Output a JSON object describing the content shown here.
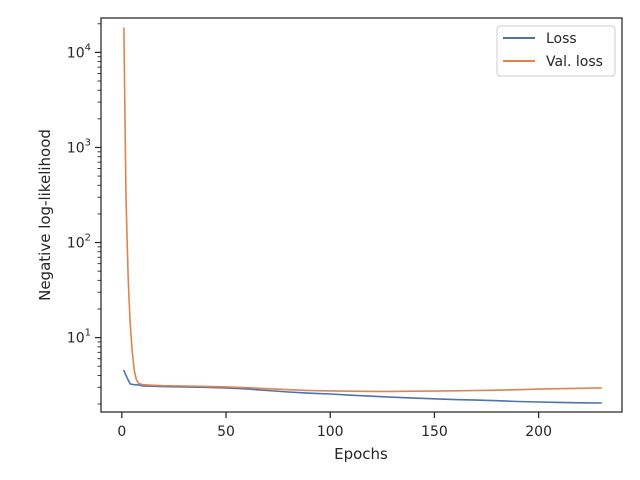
{
  "chart_data": {
    "type": "line",
    "xlabel": "Epochs",
    "ylabel": "Negative log-likelihood",
    "xscale": "linear",
    "yscale": "log",
    "xlim": [
      -10,
      240
    ],
    "ylim": [
      1.65,
      23000
    ],
    "xticks": [
      0,
      50,
      100,
      150,
      200
    ],
    "xtick_labels": [
      "0",
      "50",
      "100",
      "150",
      "200"
    ],
    "yticks": [
      10,
      100,
      1000,
      10000
    ],
    "ytick_labels": [
      {
        "base": "10",
        "exp": "1"
      },
      {
        "base": "10",
        "exp": "2"
      },
      {
        "base": "10",
        "exp": "3"
      },
      {
        "base": "10",
        "exp": "4"
      }
    ],
    "grid": false,
    "legend_position": "top-right",
    "series": [
      {
        "name": "Loss",
        "color": "#4c72b0",
        "x": [
          1,
          2,
          3,
          4,
          6,
          8,
          10,
          15,
          20,
          30,
          40,
          50,
          60,
          70,
          80,
          90,
          100,
          110,
          120,
          130,
          140,
          150,
          160,
          170,
          180,
          190,
          200,
          210,
          220,
          230
        ],
        "y": [
          4.5,
          4.0,
          3.6,
          3.25,
          3.2,
          3.18,
          3.1,
          3.08,
          3.05,
          3.03,
          3.0,
          2.95,
          2.88,
          2.78,
          2.68,
          2.6,
          2.55,
          2.48,
          2.42,
          2.36,
          2.31,
          2.27,
          2.23,
          2.2,
          2.17,
          2.13,
          2.1,
          2.08,
          2.06,
          2.05
        ]
      },
      {
        "name": "Val. loss",
        "color": "#dd8452",
        "x": [
          1,
          1.5,
          2,
          2.5,
          3,
          3.5,
          4,
          5,
          6,
          7,
          8,
          10,
          15,
          20,
          30,
          40,
          50,
          60,
          70,
          80,
          90,
          100,
          110,
          120,
          130,
          140,
          150,
          160,
          170,
          180,
          190,
          200,
          210,
          220,
          230
        ],
        "y": [
          18000,
          2000,
          300,
          120,
          45,
          25,
          14,
          7,
          4.5,
          3.6,
          3.3,
          3.2,
          3.15,
          3.12,
          3.1,
          3.07,
          3.03,
          2.97,
          2.9,
          2.83,
          2.78,
          2.75,
          2.73,
          2.72,
          2.72,
          2.73,
          2.74,
          2.76,
          2.78,
          2.8,
          2.83,
          2.87,
          2.9,
          2.93,
          2.96
        ]
      }
    ]
  }
}
